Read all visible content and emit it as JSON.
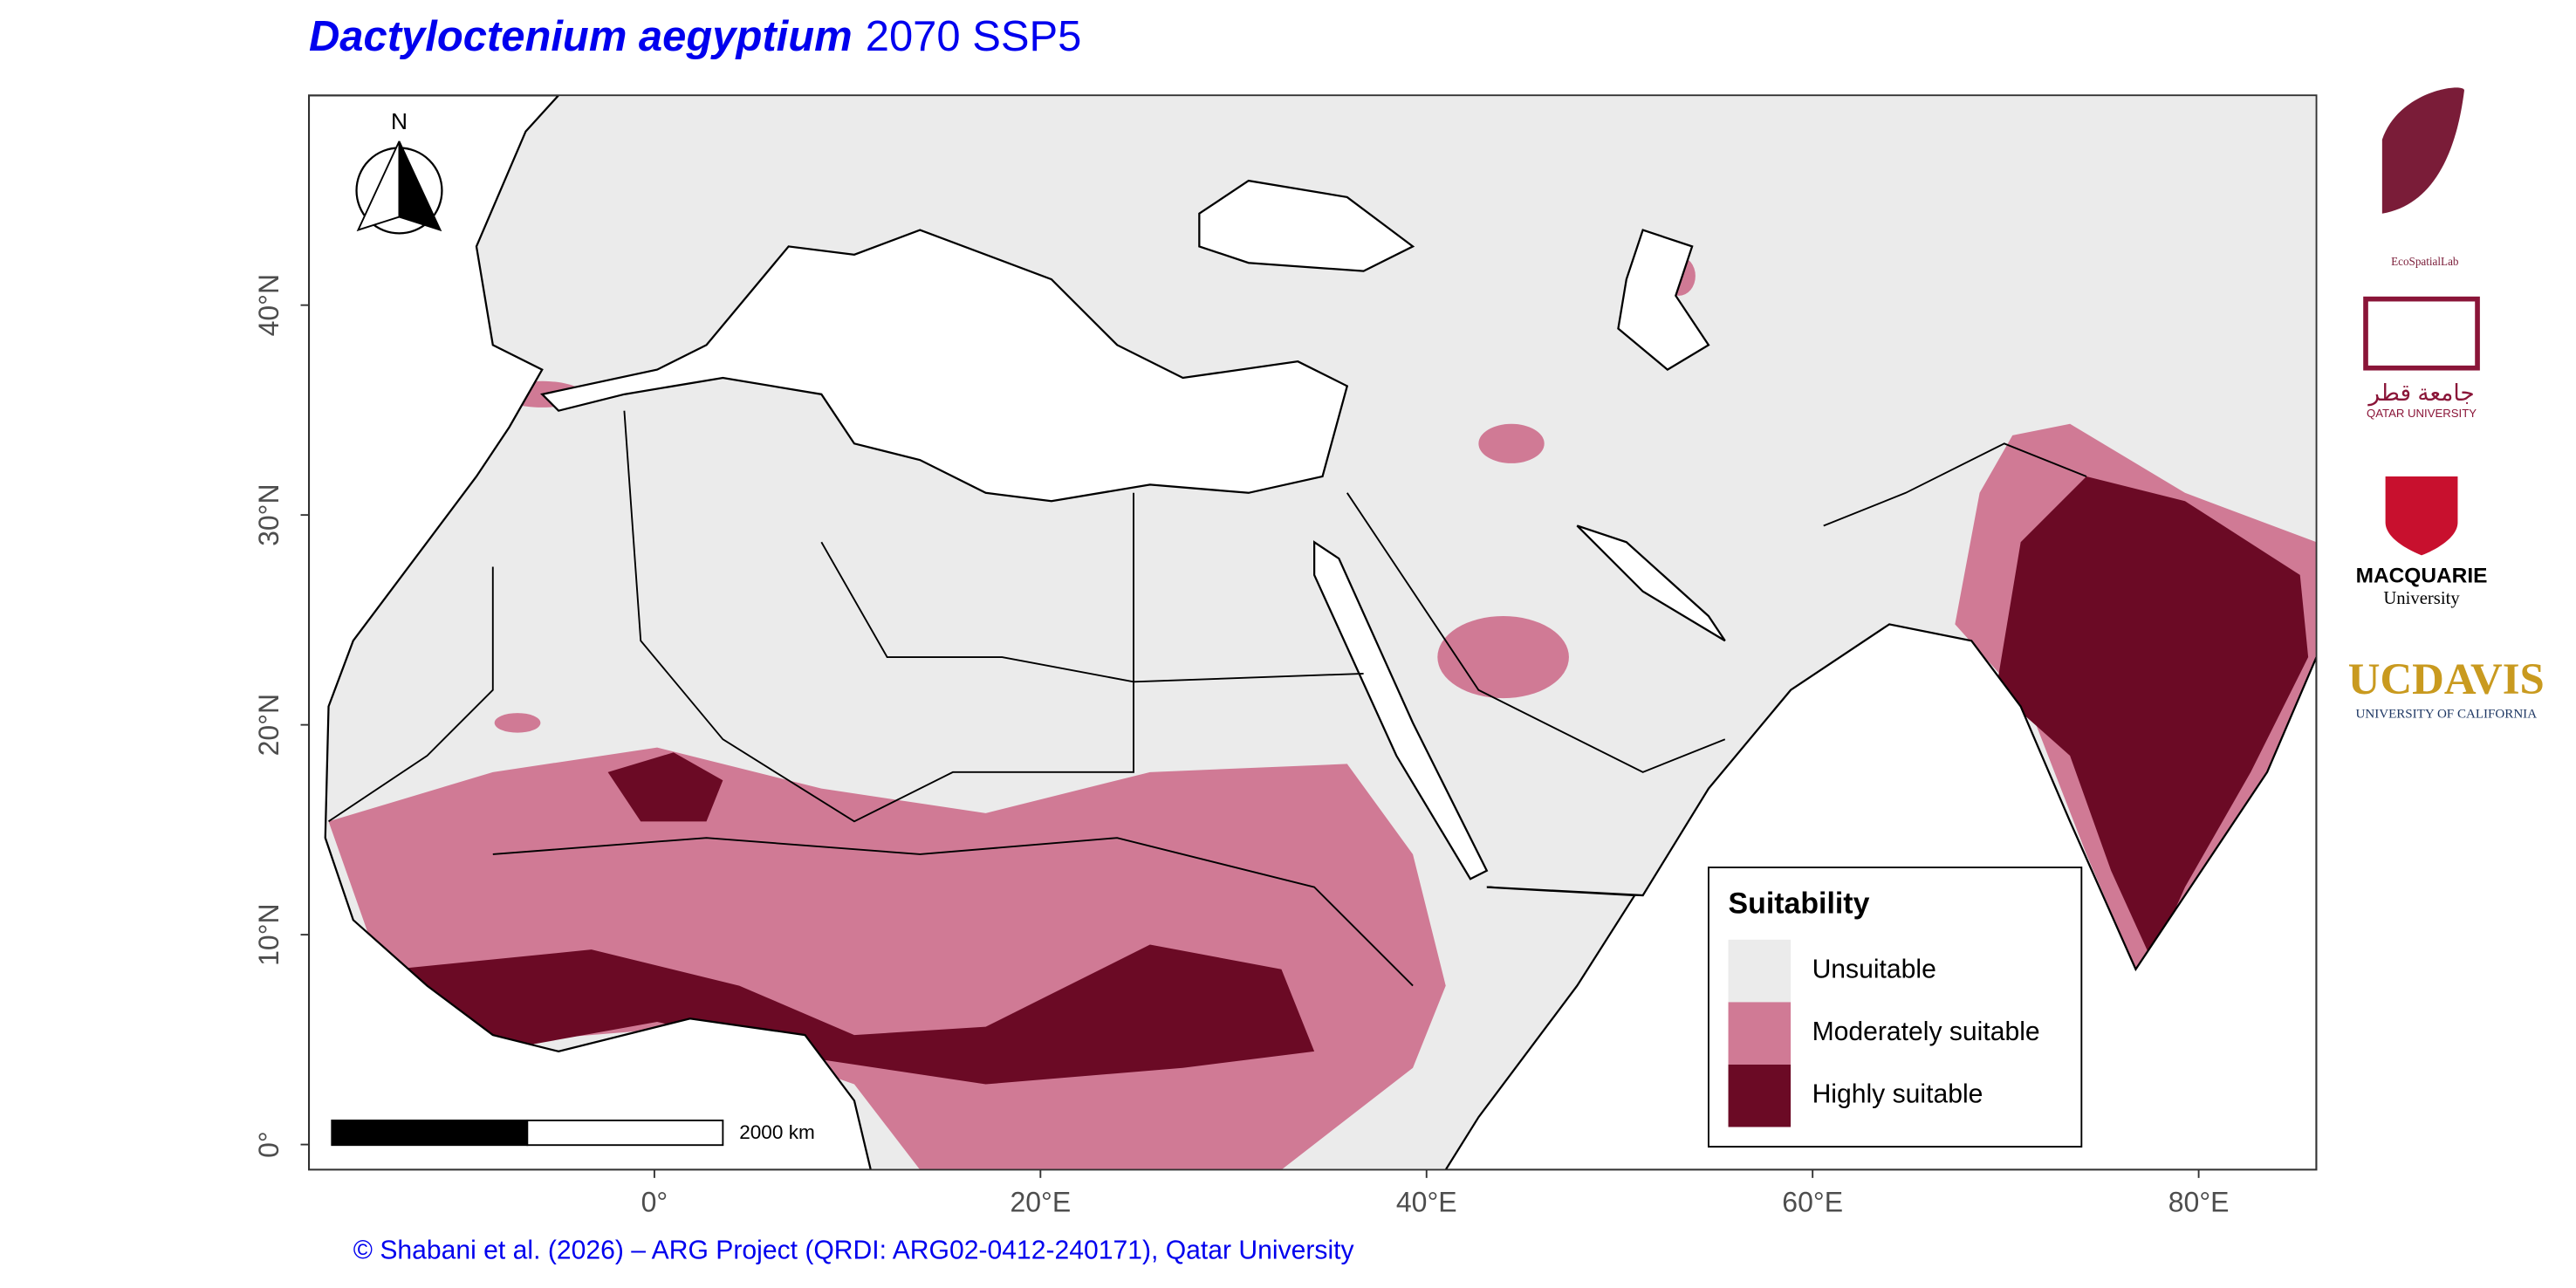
{
  "map": {
    "title": {
      "species": "Dactyloctenium aegyptium",
      "scenario": "2070 SSP5"
    },
    "xlim": [
      -17.9,
      86.1
    ],
    "ylim": [
      -1.2,
      50
    ],
    "xticks": [
      {
        "value": 0,
        "label": "0°"
      },
      {
        "value": 20,
        "label": "20°E"
      },
      {
        "value": 40,
        "label": "40°E"
      },
      {
        "value": 60,
        "label": "60°E"
      },
      {
        "value": 80,
        "label": "80°E"
      }
    ],
    "yticks": [
      {
        "value": 0,
        "label": "0°"
      },
      {
        "value": 10,
        "label": "10°N"
      },
      {
        "value": 20,
        "label": "20°N"
      },
      {
        "value": 30,
        "label": "30°N"
      },
      {
        "value": 40,
        "label": "40°N"
      }
    ],
    "north_label": "N",
    "scale_label": "2000 km",
    "legend": {
      "title": "Suitability",
      "entries": [
        {
          "label": "Unsuitable",
          "color": "#ebebeb"
        },
        {
          "label": "Moderately suitable",
          "color": "#d07a95"
        },
        {
          "label": "Highly suitable",
          "color": "#6b0a25"
        }
      ]
    },
    "credit": "© Shabani et al. (2026) – ARG Project (QRDI: ARG02-0412-240171), Qatar University",
    "logos": {
      "ecospatial": "EcoSpatialLab",
      "qu_arabic": "جامعة قطر",
      "qu": "QATAR UNIVERSITY",
      "macquarie": "MACQUARIE",
      "macquarie_sub": "University",
      "ucdavis": "UCDAVIS",
      "ucdavis_sub": "UNIVERSITY OF CALIFORNIA"
    }
  }
}
